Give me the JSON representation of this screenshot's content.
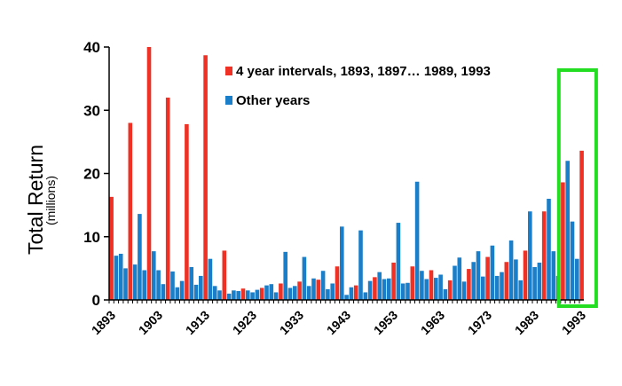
{
  "chart_data": {
    "type": "bar",
    "title": "",
    "ylabel": "Total Return",
    "ylabel_sub": "(millions)",
    "xlabel": "",
    "ylim": [
      0,
      40
    ],
    "yticks": [
      "0",
      "10",
      "20",
      "30",
      "40"
    ],
    "xticks": [
      "1893",
      "1903",
      "1913",
      "1923",
      "1933",
      "1943",
      "1953",
      "1963",
      "1973",
      "1983",
      "1993"
    ],
    "legend": [
      {
        "name": "4 year intervals, 1893, 1897… 1989, 1993",
        "color": "#ee3124"
      },
      {
        "name": "Other years",
        "color": "#1a7ec8"
      }
    ],
    "highlight": {
      "label": "highlight-box",
      "from_year": 1989,
      "to_year": 1996,
      "color": "#22dd22"
    },
    "series_by_year": [
      [
        1893,
        16.3
      ],
      [
        1894,
        7.0
      ],
      [
        1895,
        7.3
      ],
      [
        1896,
        5.0
      ],
      [
        1897,
        28.0
      ],
      [
        1898,
        5.6
      ],
      [
        1899,
        13.6
      ],
      [
        1900,
        4.7
      ],
      [
        1901,
        40.0
      ],
      [
        1902,
        7.7
      ],
      [
        1903,
        4.7
      ],
      [
        1904,
        2.5
      ],
      [
        1905,
        32.0
      ],
      [
        1906,
        4.5
      ],
      [
        1907,
        2.0
      ],
      [
        1908,
        3.0
      ],
      [
        1909,
        27.8
      ],
      [
        1910,
        5.2
      ],
      [
        1911,
        2.4
      ],
      [
        1912,
        3.8
      ],
      [
        1913,
        38.7
      ],
      [
        1914,
        6.5
      ],
      [
        1915,
        2.2
      ],
      [
        1916,
        1.5
      ],
      [
        1917,
        7.8
      ],
      [
        1918,
        1.0
      ],
      [
        1919,
        1.5
      ],
      [
        1920,
        1.4
      ],
      [
        1921,
        1.8
      ],
      [
        1922,
        1.5
      ],
      [
        1923,
        1.2
      ],
      [
        1924,
        1.6
      ],
      [
        1925,
        1.9
      ],
      [
        1926,
        2.3
      ],
      [
        1927,
        2.5
      ],
      [
        1928,
        1.2
      ],
      [
        1929,
        2.6
      ],
      [
        1930,
        7.6
      ],
      [
        1931,
        1.9
      ],
      [
        1932,
        2.2
      ],
      [
        1933,
        2.9
      ],
      [
        1934,
        6.8
      ],
      [
        1935,
        2.2
      ],
      [
        1936,
        3.4
      ],
      [
        1937,
        3.2
      ],
      [
        1938,
        4.6
      ],
      [
        1939,
        1.7
      ],
      [
        1940,
        2.6
      ],
      [
        1941,
        5.3
      ],
      [
        1942,
        11.6
      ],
      [
        1943,
        0.8
      ],
      [
        1944,
        2.0
      ],
      [
        1945,
        2.3
      ],
      [
        1946,
        11.0
      ],
      [
        1947,
        1.2
      ],
      [
        1948,
        3.0
      ],
      [
        1949,
        3.6
      ],
      [
        1950,
        4.4
      ],
      [
        1951,
        3.3
      ],
      [
        1952,
        3.4
      ],
      [
        1953,
        5.9
      ],
      [
        1954,
        12.2
      ],
      [
        1955,
        2.6
      ],
      [
        1956,
        2.7
      ],
      [
        1957,
        5.3
      ],
      [
        1958,
        18.7
      ],
      [
        1959,
        4.6
      ],
      [
        1960,
        3.3
      ],
      [
        1961,
        4.7
      ],
      [
        1962,
        3.5
      ],
      [
        1963,
        4.0
      ],
      [
        1964,
        1.7
      ],
      [
        1965,
        3.1
      ],
      [
        1966,
        5.4
      ],
      [
        1967,
        6.7
      ],
      [
        1968,
        2.9
      ],
      [
        1969,
        4.9
      ],
      [
        1970,
        6.0
      ],
      [
        1971,
        7.7
      ],
      [
        1972,
        3.7
      ],
      [
        1973,
        6.8
      ],
      [
        1974,
        8.6
      ],
      [
        1975,
        3.8
      ],
      [
        1976,
        4.4
      ],
      [
        1977,
        6.0
      ],
      [
        1978,
        9.4
      ],
      [
        1979,
        6.4
      ],
      [
        1980,
        3.1
      ],
      [
        1981,
        7.8
      ],
      [
        1982,
        14.0
      ],
      [
        1983,
        5.2
      ],
      [
        1984,
        5.9
      ],
      [
        1985,
        14.0
      ],
      [
        1986,
        16.0
      ],
      [
        1987,
        7.7
      ],
      [
        1988,
        3.8
      ],
      [
        1989,
        18.6
      ],
      [
        1990,
        22.0
      ],
      [
        1991,
        12.4
      ],
      [
        1992,
        6.5
      ],
      [
        1993,
        23.6
      ]
    ]
  }
}
